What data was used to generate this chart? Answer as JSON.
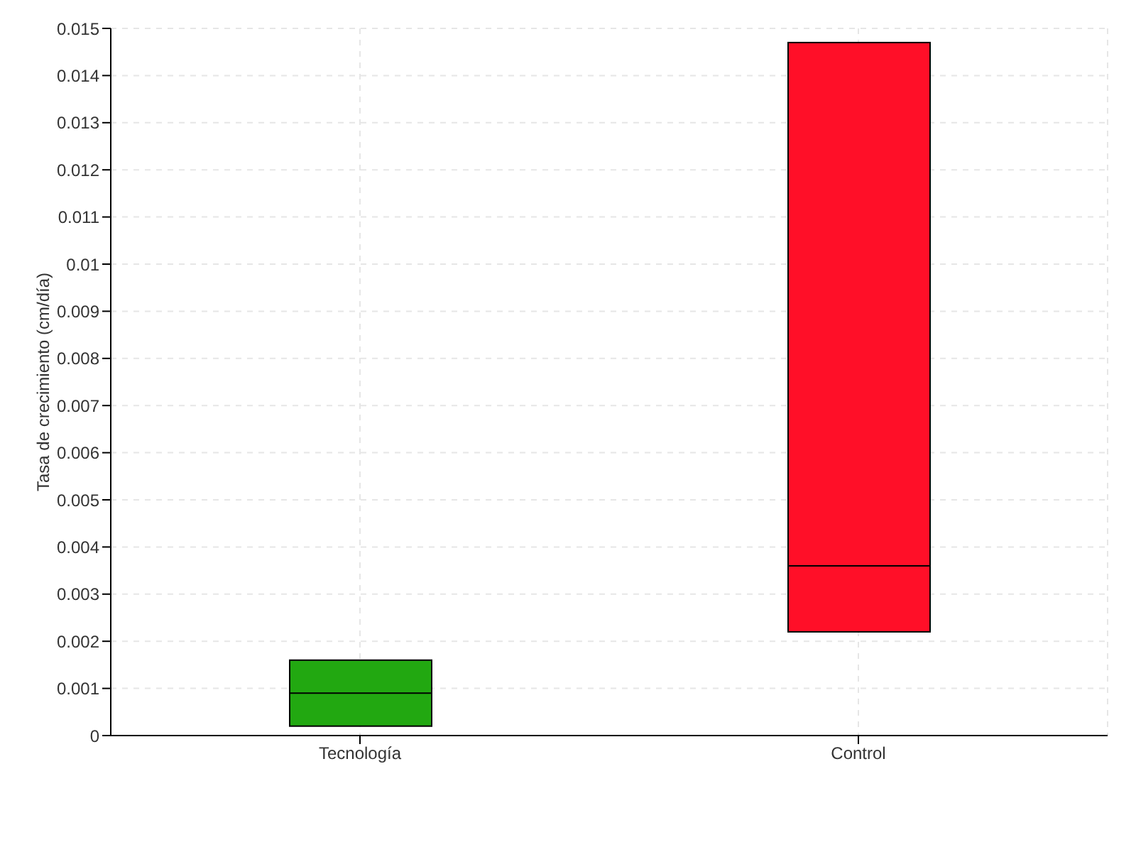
{
  "chart_data": {
    "type": "box",
    "ylabel": "Tasa de crecimiento (cm/día)",
    "categories": [
      "Tecnología",
      "Control"
    ],
    "boxes": [
      {
        "low": 0.0002,
        "q1": 0.0002,
        "median": 0.0009,
        "q3": 0.0016,
        "high": 0.0016
      },
      {
        "low": 0.0022,
        "q1": 0.0022,
        "median": 0.0036,
        "q3": 0.0147,
        "high": 0.0147
      }
    ],
    "colors": [
      "#22a811",
      "#ff0f28"
    ],
    "ylim": [
      0,
      0.015
    ],
    "yticks": [
      0,
      0.001,
      0.002,
      0.003,
      0.004,
      0.005,
      0.006,
      0.007,
      0.008,
      0.009,
      0.01,
      0.011,
      0.012,
      0.013,
      0.014,
      0.015
    ],
    "grid": true
  }
}
